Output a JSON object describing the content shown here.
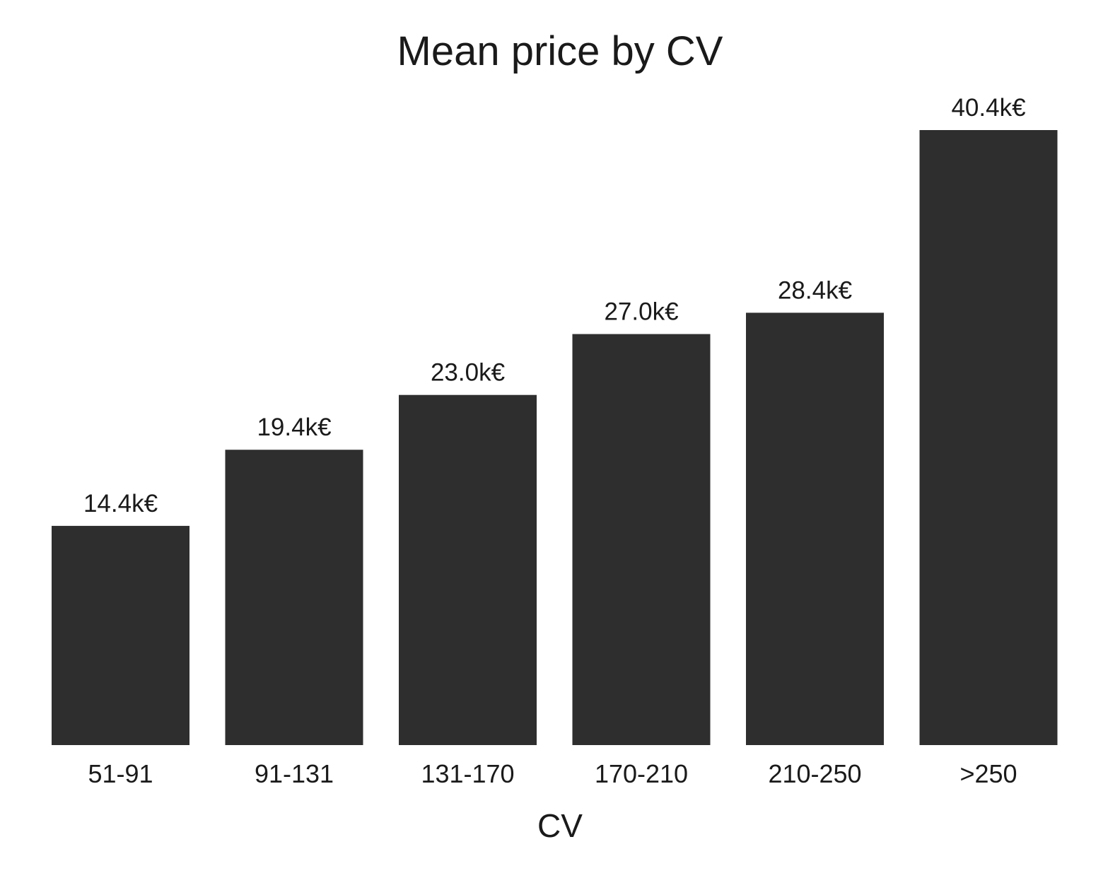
{
  "chart_data": {
    "type": "bar",
    "title": "Mean price by CV",
    "xlabel": "CV",
    "ylabel": "",
    "categories": [
      "51-91",
      "91-131",
      "131-170",
      "170-210",
      "210-250",
      ">250"
    ],
    "values": [
      14.4,
      19.4,
      23.0,
      27.0,
      28.4,
      40.4
    ],
    "value_labels": [
      "14.4k€",
      "19.4k€",
      "23.0k€",
      "27.0k€",
      "28.4k€",
      "40.4k€"
    ],
    "ylim": [
      0,
      40.4
    ],
    "grid": false,
    "legend": "none",
    "bar_color": "#2e2e2e"
  }
}
